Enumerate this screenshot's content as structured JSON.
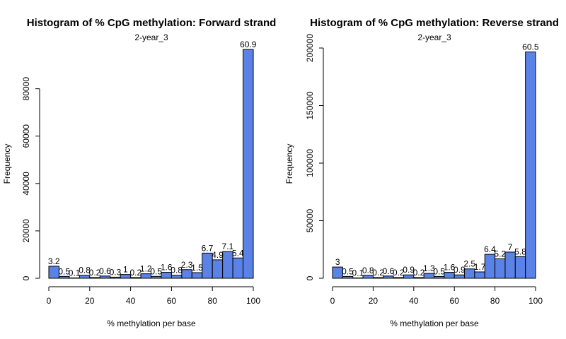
{
  "chart_data": [
    {
      "type": "bar",
      "title": "Histogram of % CpG methylation: Forward strand",
      "subtitle": "2-year_3",
      "xlabel": "% methylation per base",
      "ylabel": "Frequency",
      "xlim": [
        0,
        100
      ],
      "ylim": [
        0,
        96000
      ],
      "x_ticks": [
        0,
        20,
        40,
        60,
        80,
        100
      ],
      "y_ticks": [
        0,
        20000,
        40000,
        60000,
        80000
      ],
      "grid": false,
      "bar_color": "#5b82e6",
      "bin_edges": [
        0,
        5,
        10,
        15,
        20,
        25,
        30,
        35,
        40,
        45,
        50,
        55,
        60,
        65,
        70,
        75,
        80,
        85,
        90,
        95,
        100
      ],
      "values": [
        5080,
        800,
        160,
        1270,
        320,
        950,
        480,
        1600,
        320,
        1900,
        800,
        2540,
        1270,
        3650,
        2380,
        10630,
        7780,
        11270,
        8570,
        96600
      ],
      "data_labels": [
        "3.2",
        "0.5",
        "0.1",
        "0.8",
        "0.2",
        "0.6",
        "0.3",
        "1",
        "0.2",
        "1.2",
        "0.5",
        "1.6",
        "0.8",
        "2.3",
        "1.5",
        "6.7",
        "4.9",
        "7.1",
        "5.4",
        "60.9"
      ]
    },
    {
      "type": "bar",
      "title": "Histogram of % CpG methylation: Reverse strand",
      "subtitle": "2-year_3",
      "xlabel": "% methylation per base",
      "ylabel": "Frequency",
      "xlim": [
        0,
        100
      ],
      "ylim": [
        0,
        200000
      ],
      "x_ticks": [
        0,
        20,
        40,
        60,
        80,
        100
      ],
      "y_ticks": [
        0,
        50000,
        100000,
        150000,
        200000
      ],
      "grid": false,
      "bar_color": "#5b82e6",
      "bin_edges": [
        0,
        5,
        10,
        15,
        20,
        25,
        30,
        35,
        40,
        45,
        50,
        55,
        60,
        65,
        70,
        75,
        80,
        85,
        90,
        95,
        100
      ],
      "values": [
        9750,
        1620,
        320,
        2600,
        650,
        1950,
        650,
        2930,
        650,
        4230,
        1620,
        5200,
        2930,
        8130,
        5530,
        20800,
        16900,
        22760,
        18850,
        196600
      ],
      "data_labels": [
        "3",
        "0.5",
        "0.1",
        "0.8",
        "0.2",
        "0.6",
        "0.2",
        "0.9",
        "0.2",
        "1.3",
        "0.5",
        "1.6",
        "0.9",
        "2.5",
        "1.7",
        "6.4",
        "5.2",
        "7",
        "5.8",
        "60.5"
      ]
    }
  ]
}
